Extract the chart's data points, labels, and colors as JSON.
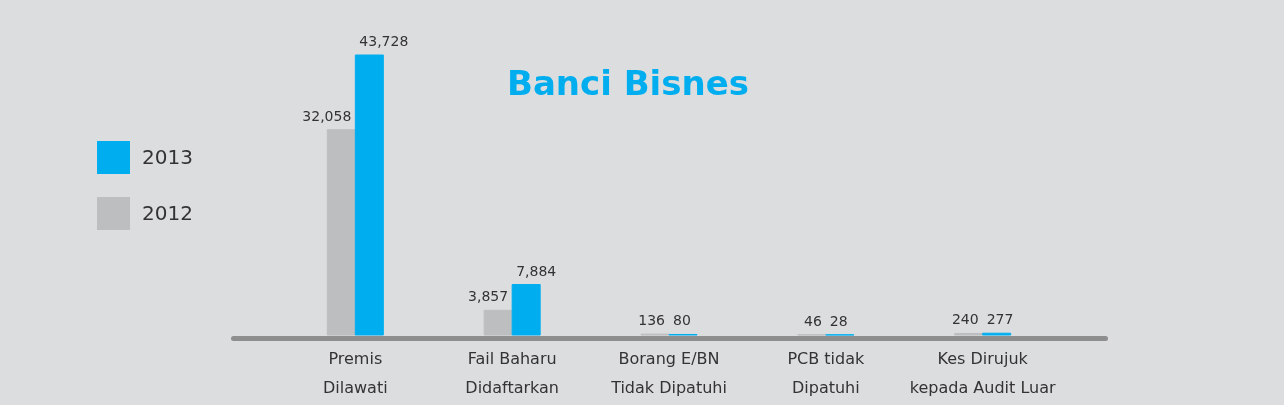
{
  "chart_data": {
    "type": "bar",
    "title": "Banci Bisnes",
    "categories": [
      "Premis\nDilawati",
      "Fail Baharu\nDidaftarkan",
      "Borang E/BN\nTidak Dipatuhi",
      "PCB tidak\nDipatuhi",
      "Kes Dirujuk\nkepada Audit Luar"
    ],
    "series": [
      {
        "name": "2012",
        "color": "#bcbec0",
        "values": [
          32058,
          3857,
          136,
          46,
          240
        ],
        "value_labels": [
          "32,058",
          "3,857",
          "136",
          "46",
          "240"
        ]
      },
      {
        "name": "2013",
        "color": "#00aeef",
        "values": [
          43728,
          7884,
          80,
          28,
          277
        ],
        "value_labels": [
          "43,728",
          "7,884",
          "80",
          "28",
          "277"
        ]
      }
    ],
    "legend": "left",
    "tick_labels": "x"
  }
}
